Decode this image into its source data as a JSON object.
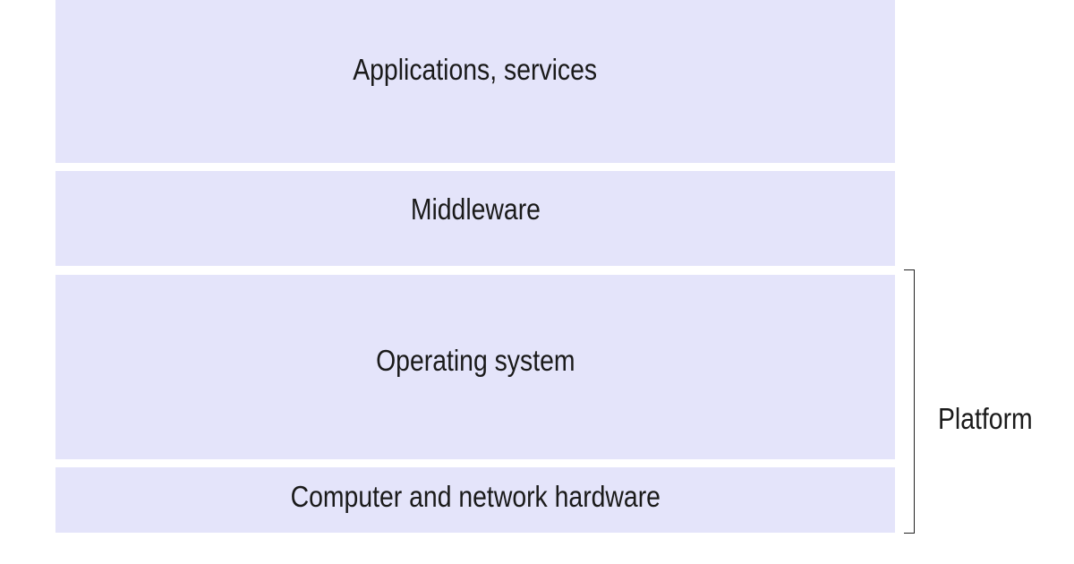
{
  "colors": {
    "layer_fill": "#e4e4fa",
    "text": "#1a1a1a",
    "bracket": "#222222",
    "background": "#ffffff"
  },
  "layers": [
    {
      "label": "Applications, services"
    },
    {
      "label": "Middleware"
    },
    {
      "label": "Operating system"
    },
    {
      "label": "Computer and network hardware"
    }
  ],
  "platform": {
    "label": "Platform"
  }
}
